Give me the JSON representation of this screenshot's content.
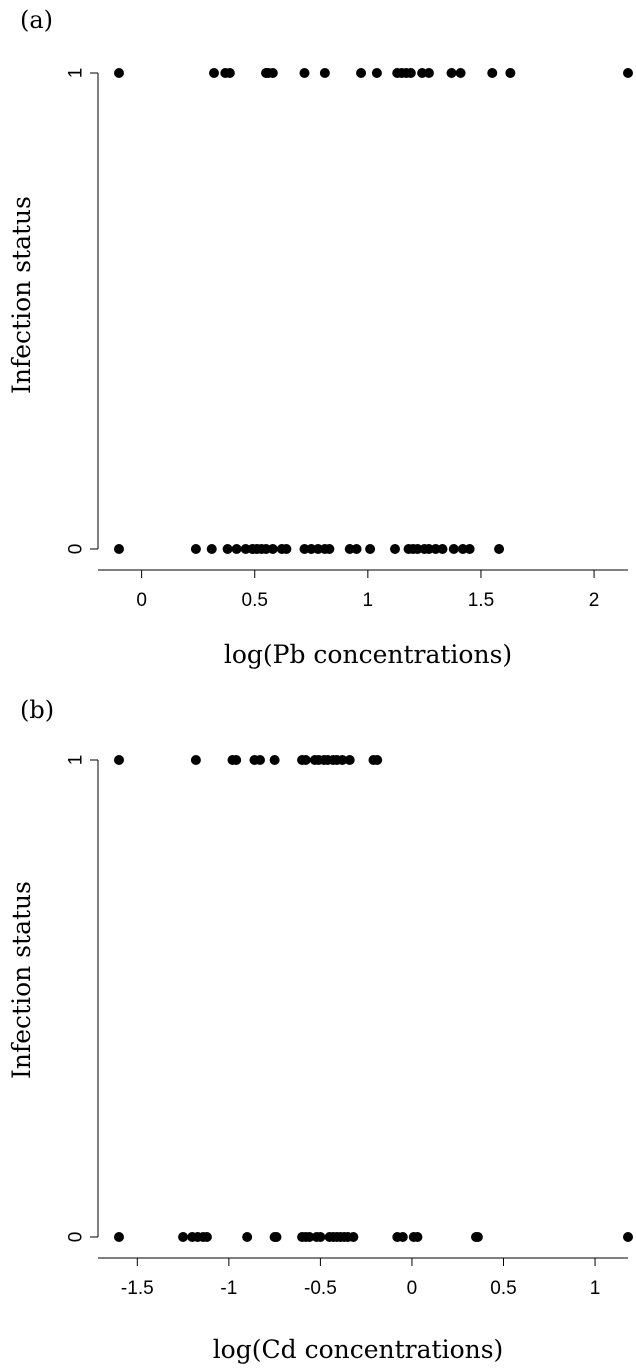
{
  "chart_data": [
    {
      "type": "scatter",
      "panel_label": "(a)",
      "xlabel": "log(Pb concentrations)",
      "ylabel": "Infection status",
      "xlim": [
        -0.1,
        2.15
      ],
      "ylim": [
        0,
        1
      ],
      "x_ticks": [
        0,
        0.5,
        1,
        1.5,
        2
      ],
      "x_tick_labels": [
        "0",
        "0.5",
        "1",
        "1.5",
        "2"
      ],
      "y_ticks": [
        0,
        1
      ],
      "y_tick_labels": [
        "0",
        "1"
      ],
      "grid": false,
      "points_y1": [
        -0.1,
        0.32,
        0.37,
        0.39,
        0.55,
        0.56,
        0.58,
        0.72,
        0.81,
        0.97,
        1.04,
        1.13,
        1.15,
        1.17,
        1.19,
        1.24,
        1.27,
        1.37,
        1.41,
        1.55,
        1.63,
        2.15
      ],
      "points_y0": [
        -0.1,
        0.24,
        0.31,
        0.38,
        0.42,
        0.46,
        0.49,
        0.51,
        0.53,
        0.55,
        0.58,
        0.62,
        0.64,
        0.72,
        0.75,
        0.78,
        0.81,
        0.83,
        0.92,
        0.95,
        1.01,
        1.12,
        1.18,
        1.2,
        1.22,
        1.25,
        1.27,
        1.3,
        1.33,
        1.38,
        1.42,
        1.45,
        1.58
      ]
    },
    {
      "type": "scatter",
      "panel_label": "(b)",
      "xlabel": "log(Cd concentrations)",
      "ylabel": "Infection status",
      "xlim": [
        -1.6,
        1.18
      ],
      "ylim": [
        0,
        1
      ],
      "x_ticks": [
        -1.5,
        -1,
        -0.5,
        0,
        0.5,
        1
      ],
      "x_tick_labels": [
        "-1.5",
        "-1",
        "-0.5",
        "0",
        "0.5",
        "1"
      ],
      "y_ticks": [
        0,
        1
      ],
      "y_tick_labels": [
        "0",
        "1"
      ],
      "grid": false,
      "points_y1": [
        -1.6,
        -1.18,
        -0.98,
        -0.96,
        -0.86,
        -0.83,
        -0.75,
        -0.6,
        -0.58,
        -0.53,
        -0.51,
        -0.48,
        -0.46,
        -0.43,
        -0.41,
        -0.38,
        -0.34,
        -0.21,
        -0.19
      ],
      "points_y0": [
        -1.6,
        -1.25,
        -1.2,
        -1.17,
        -1.14,
        -1.12,
        -0.9,
        -0.75,
        -0.74,
        -0.6,
        -0.58,
        -0.56,
        -0.52,
        -0.5,
        -0.45,
        -0.43,
        -0.41,
        -0.39,
        -0.37,
        -0.35,
        -0.32,
        -0.08,
        -0.05,
        0.01,
        0.03,
        0.35,
        0.36,
        1.18
      ]
    }
  ]
}
